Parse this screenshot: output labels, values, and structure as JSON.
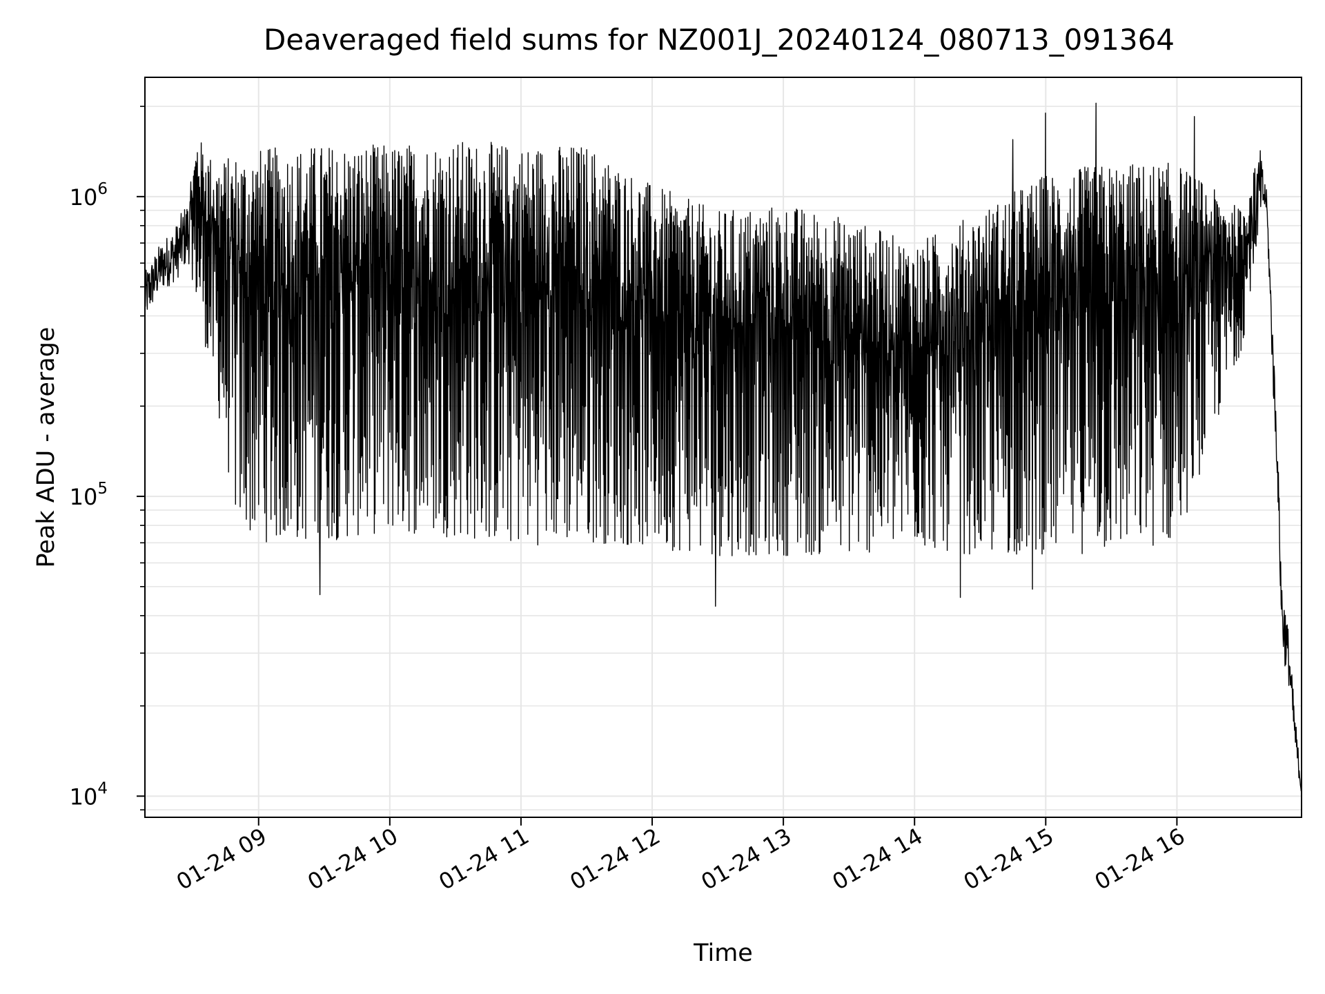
{
  "chart_data": {
    "type": "line",
    "title": "Deaveraged field sums for NZ001J_20240124_080713_091364",
    "xlabel": "Time",
    "ylabel": "Peak ADU - average",
    "yscale": "log",
    "xlim": [
      "2024-01-24 08:08",
      "2024-01-24 16:57"
    ],
    "ylim": [
      8500,
      2500000
    ],
    "x_ticks": [
      {
        "value": "2024-01-24 09:00",
        "label": "01-24 09"
      },
      {
        "value": "2024-01-24 10:00",
        "label": "01-24 10"
      },
      {
        "value": "2024-01-24 11:00",
        "label": "01-24 11"
      },
      {
        "value": "2024-01-24 12:00",
        "label": "01-24 12"
      },
      {
        "value": "2024-01-24 13:00",
        "label": "01-24 13"
      },
      {
        "value": "2024-01-24 14:00",
        "label": "01-24 14"
      },
      {
        "value": "2024-01-24 15:00",
        "label": "01-24 15"
      },
      {
        "value": "2024-01-24 16:00",
        "label": "01-24 16"
      }
    ],
    "y_ticks": [
      {
        "value": 10000,
        "base": "10",
        "exp": "4"
      },
      {
        "value": 100000,
        "base": "10",
        "exp": "5"
      },
      {
        "value": 1000000,
        "base": "10",
        "exp": "6"
      }
    ],
    "grid": true,
    "line_color": "#000000",
    "grid_color": "#e6e6e6",
    "series": [
      {
        "envelope": [
          {
            "x": "2024-01-24 08:08",
            "low": 380000,
            "high": 560000
          },
          {
            "x": "2024-01-24 08:15",
            "low": 480000,
            "high": 700000
          },
          {
            "x": "2024-01-24 08:22",
            "low": 520000,
            "high": 800000
          },
          {
            "x": "2024-01-24 08:28",
            "low": 600000,
            "high": 1000000
          },
          {
            "x": "2024-01-24 08:32",
            "low": 400000,
            "high": 1600000
          },
          {
            "x": "2024-01-24 08:40",
            "low": 200000,
            "high": 1300000
          },
          {
            "x": "2024-01-24 08:50",
            "low": 70000,
            "high": 1400000
          },
          {
            "x": "2024-01-24 09:00",
            "low": 60000,
            "high": 1450000
          },
          {
            "x": "2024-01-24 09:30",
            "low": 60000,
            "high": 1500000
          },
          {
            "x": "2024-01-24 10:00",
            "low": 65000,
            "high": 1500000
          },
          {
            "x": "2024-01-24 10:30",
            "low": 62000,
            "high": 1550000
          },
          {
            "x": "2024-01-24 11:00",
            "low": 58000,
            "high": 1500000
          },
          {
            "x": "2024-01-24 11:30",
            "low": 60000,
            "high": 1500000
          },
          {
            "x": "2024-01-24 12:00",
            "low": 58000,
            "high": 1100000
          },
          {
            "x": "2024-01-24 12:30",
            "low": 55000,
            "high": 900000
          },
          {
            "x": "2024-01-24 13:00",
            "low": 55000,
            "high": 950000
          },
          {
            "x": "2024-01-24 13:30",
            "low": 55000,
            "high": 850000
          },
          {
            "x": "2024-01-24 14:00",
            "low": 60000,
            "high": 700000
          },
          {
            "x": "2024-01-24 14:30",
            "low": 55000,
            "high": 900000
          },
          {
            "x": "2024-01-24 15:00",
            "low": 55000,
            "high": 1200000
          },
          {
            "x": "2024-01-24 15:30",
            "low": 55000,
            "high": 1300000
          },
          {
            "x": "2024-01-24 16:00",
            "low": 60000,
            "high": 1300000
          },
          {
            "x": "2024-01-24 16:30",
            "low": 300000,
            "high": 900000
          },
          {
            "x": "2024-01-24 16:38",
            "low": 800000,
            "high": 1450000
          },
          {
            "x": "2024-01-24 16:41",
            "low": 900000,
            "high": 1050000
          },
          {
            "x": "2024-01-24 16:44",
            "low": 220000,
            "high": 350000
          },
          {
            "x": "2024-01-24 16:46",
            "low": 110000,
            "high": 150000
          },
          {
            "x": "2024-01-24 16:48",
            "low": 30000,
            "high": 55000
          },
          {
            "x": "2024-01-24 16:51",
            "low": 24000,
            "high": 36000
          },
          {
            "x": "2024-01-24 16:54",
            "low": 14000,
            "high": 19000
          },
          {
            "x": "2024-01-24 16:57",
            "low": 10000,
            "high": 11000
          }
        ],
        "spikes_up": [
          {
            "x": "2024-01-24 14:45",
            "y": 1550000
          },
          {
            "x": "2024-01-24 15:00",
            "y": 1900000
          },
          {
            "x": "2024-01-24 15:23",
            "y": 2050000
          },
          {
            "x": "2024-01-24 16:08",
            "y": 1850000
          }
        ],
        "spikes_down": [
          {
            "x": "2024-01-24 09:28",
            "y": 47000
          },
          {
            "x": "2024-01-24 12:29",
            "y": 43000
          },
          {
            "x": "2024-01-24 14:21",
            "y": 46000
          },
          {
            "x": "2024-01-24 14:54",
            "y": 49000
          }
        ]
      }
    ]
  }
}
